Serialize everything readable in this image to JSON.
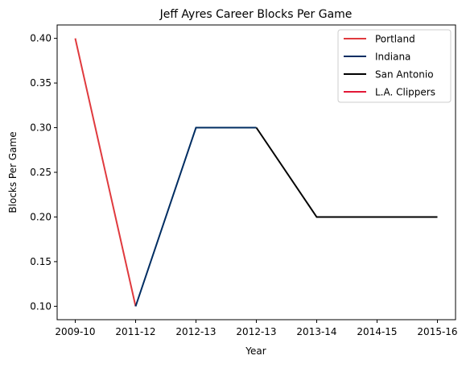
{
  "chart_data": {
    "type": "line",
    "title": "Jeff Ayres Career Blocks Per Game",
    "xlabel": "Year",
    "ylabel": "Blocks Per Game",
    "x_tick_labels": [
      "2009-10",
      "2011-12",
      "2012-13",
      "2012-13",
      "2013-14",
      "2014-15",
      "2015-16"
    ],
    "y_ticks": [
      0.1,
      0.15,
      0.2,
      0.25,
      0.3,
      0.35,
      0.4
    ],
    "y_tick_labels": [
      "0.10",
      "0.15",
      "0.20",
      "0.25",
      "0.30",
      "0.35",
      "0.40"
    ],
    "ylim": [
      0.085,
      0.415
    ],
    "xlim": [
      -0.3,
      6.3
    ],
    "grid": false,
    "legend_placement": "top-right",
    "series": [
      {
        "name": "Portland",
        "color": "#E03A3E",
        "x": [
          0,
          1
        ],
        "y": [
          0.4,
          0.1
        ]
      },
      {
        "name": "Indiana",
        "color": "#002D62",
        "x": [
          1,
          2,
          3
        ],
        "y": [
          0.1,
          0.3,
          0.3
        ]
      },
      {
        "name": "San Antonio",
        "color": "#000000",
        "x": [
          3,
          4,
          5,
          6
        ],
        "y": [
          0.3,
          0.2,
          0.2,
          0.2
        ]
      },
      {
        "name": "L.A. Clippers",
        "color": "#E31837",
        "x": [],
        "y": []
      }
    ]
  }
}
